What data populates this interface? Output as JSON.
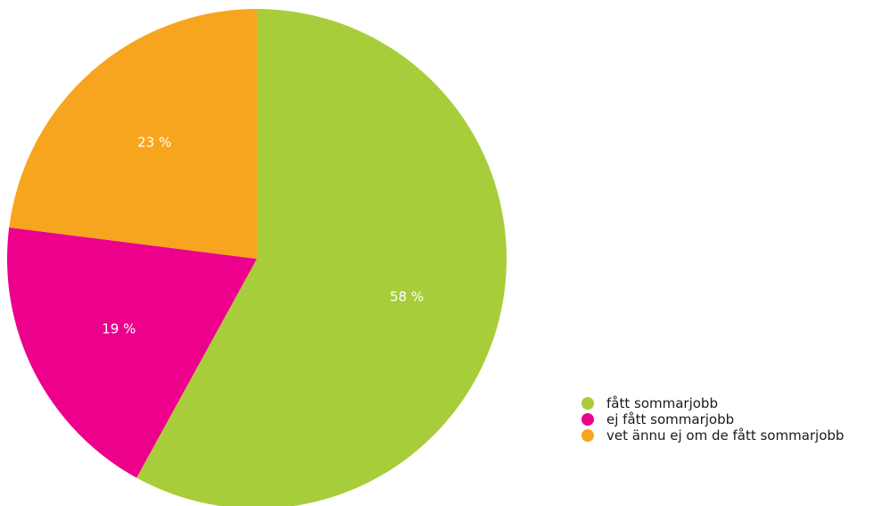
{
  "chart_data": {
    "type": "pie",
    "title": "",
    "start_angle_deg": 0,
    "direction": "clockwise",
    "legend_position": "bottom-right",
    "slices": [
      {
        "name": "fått sommarjobb",
        "value": 58,
        "label": "58 %",
        "color": "#a8cd3a"
      },
      {
        "name": "ej fått sommarjobb",
        "value": 19,
        "label": "19 %",
        "color": "#ec008c"
      },
      {
        "name": "vet ännu ej om de fått sommarjobb",
        "value": 23,
        "label": "23 %",
        "color": "#f7a51e"
      }
    ]
  }
}
